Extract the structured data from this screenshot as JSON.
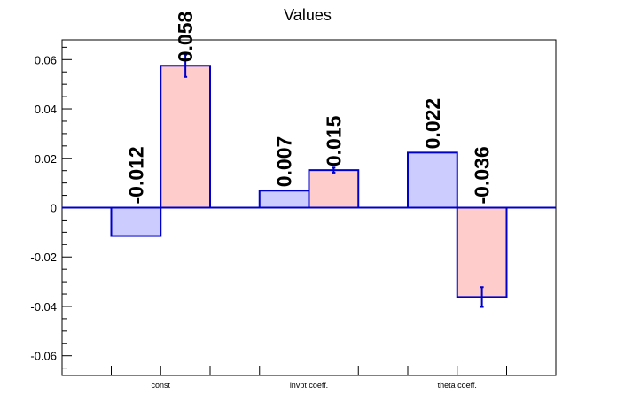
{
  "chart_data": {
    "type": "bar",
    "title": "Values",
    "categories": [
      "const",
      "invpt coeff.",
      "theta coeff."
    ],
    "ylim": [
      -0.068,
      0.068
    ],
    "yticks": [
      "0.06",
      "0.04",
      "0.02",
      "0",
      "-0.02",
      "-0.04",
      "-0.06"
    ],
    "grid": false,
    "zero_line": true,
    "series": [
      {
        "fill": "#ccccff",
        "stroke": "#0000cc",
        "values": [
          -0.0115,
          0.0069,
          0.0223
        ],
        "labels": [
          "-0.012",
          "0.007",
          "0.022"
        ],
        "errors": [
          null,
          null,
          null
        ]
      },
      {
        "fill": "#ffcccc",
        "stroke": "#0000cc",
        "values": [
          0.0575,
          0.0152,
          -0.0362
        ],
        "labels": [
          "0.058",
          "0.015",
          "-0.036"
        ],
        "errors": [
          0.0045,
          0.001,
          0.004
        ]
      }
    ]
  }
}
